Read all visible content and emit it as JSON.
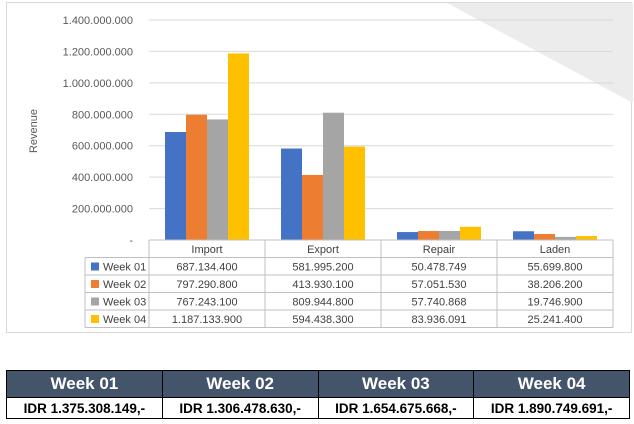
{
  "chart_data": {
    "type": "bar",
    "ylabel": "Revenue",
    "ylim": [
      0,
      1400000000
    ],
    "y_ticks": [
      "-",
      "200.000.000",
      "400.000.000",
      "600.000.000",
      "800.000.000",
      "1.000.000.000",
      "1.200.000.000",
      "1.400.000.000"
    ],
    "y_tick_values": [
      0,
      200000000,
      400000000,
      600000000,
      800000000,
      1000000000,
      1200000000,
      1400000000
    ],
    "grid": true,
    "legend": "data-table",
    "categories": [
      "Import",
      "Export",
      "Repair",
      "Laden"
    ],
    "series": [
      {
        "name": "Week 01",
        "color": "#4472c4",
        "values": [
          687134400,
          581995200,
          50478749,
          55699800
        ],
        "labels": [
          "687.134.400",
          "581.995.200",
          "50.478.749",
          "55.699.800"
        ]
      },
      {
        "name": "Week 02",
        "color": "#ed7d31",
        "values": [
          797290800,
          413930100,
          57051530,
          38206200
        ],
        "labels": [
          "797.290.800",
          "413.930.100",
          "57.051.530",
          "38.206.200"
        ]
      },
      {
        "name": "Week 03",
        "color": "#a5a5a5",
        "values": [
          767243100,
          809944800,
          57740868,
          19746900
        ],
        "labels": [
          "767.243.100",
          "809.944.800",
          "57.740.868",
          "19.746.900"
        ]
      },
      {
        "name": "Week 04",
        "color": "#ffc000",
        "values": [
          1187133900,
          594438300,
          83936091,
          25241400
        ],
        "labels": [
          "1.187.133.900",
          "594.438.300",
          "83.936.091",
          "25.241.400"
        ]
      }
    ]
  },
  "totals": {
    "headers": [
      "Week 01",
      "Week 02",
      "Week 03",
      "Week 04"
    ],
    "values": [
      "IDR 1.375.308.149,-",
      "IDR 1.306.478.630,-",
      "IDR 1.654.675.668,-",
      "IDR 1.890.749.691,-"
    ]
  }
}
